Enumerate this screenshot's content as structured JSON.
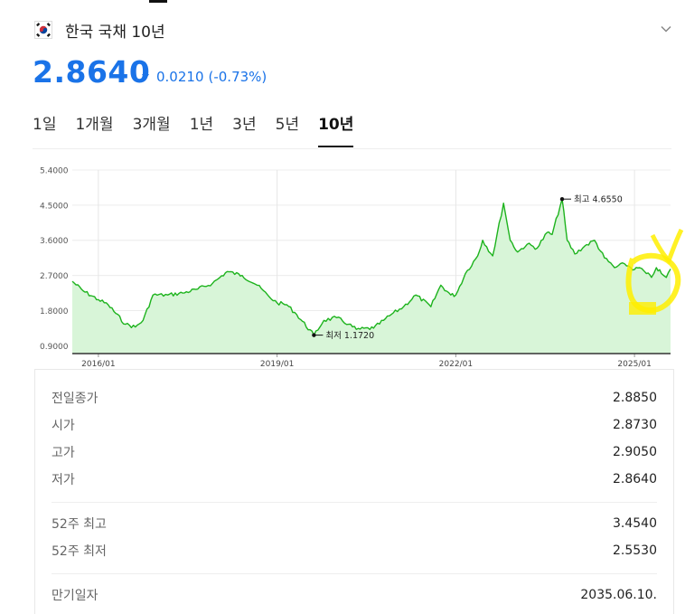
{
  "header": {
    "flag_icon": "korea-flag-icon",
    "title": "한국 국채 10년",
    "expand_icon": "chevron-down-icon"
  },
  "quote": {
    "price": "2.8640",
    "direction_icon": "down-triangle-icon",
    "change": "0.0210",
    "change_pct": "(-0.73%)",
    "color": "#1a73e8"
  },
  "tabs": [
    {
      "label": "1일",
      "active": false
    },
    {
      "label": "1개월",
      "active": false
    },
    {
      "label": "3개월",
      "active": false
    },
    {
      "label": "1년",
      "active": false
    },
    {
      "label": "3년",
      "active": false
    },
    {
      "label": "5년",
      "active": false
    },
    {
      "label": "10년",
      "active": true
    }
  ],
  "chart_data": {
    "type": "area",
    "line_color": "#1db31d",
    "fill_color": "#d8f5d8",
    "x_domain": [
      "2015-07-25",
      "2025-08-10"
    ],
    "ylim": [
      0.7,
      5.4
    ],
    "y_ticks": [
      "5.4000",
      "4.5000",
      "3.6000",
      "2.7000",
      "1.8000",
      "0.9000"
    ],
    "x_ticks": [
      {
        "date": "2016-01-01",
        "label": "2016/01"
      },
      {
        "date": "2019-01-01",
        "label": "2019/01"
      },
      {
        "date": "2022-01-01",
        "label": "2022/01"
      },
      {
        "date": "2025-01-01",
        "label": "2025/01"
      }
    ],
    "grid": true,
    "annotations": [
      {
        "date": "2023-10-15",
        "value": 4.655,
        "text": "최고 4.6550"
      },
      {
        "date": "2019-08-15",
        "value": 1.172,
        "text": "최저 1.1720"
      }
    ],
    "series": [
      {
        "dates": [
          "2015-07-25",
          "2015-10-01",
          "2016-01-01",
          "2016-03-01",
          "2016-06-15",
          "2016-08-15",
          "2016-10-01",
          "2016-12-01",
          "2017-03-01",
          "2017-06-01",
          "2017-09-01",
          "2017-12-01",
          "2018-01-15",
          "2018-03-01",
          "2018-06-01",
          "2018-09-01",
          "2018-11-15",
          "2019-01-01",
          "2019-03-01",
          "2019-05-01",
          "2019-08-15",
          "2019-10-15",
          "2020-01-01",
          "2020-03-15",
          "2020-05-01",
          "2020-08-15",
          "2020-10-15",
          "2020-12-01",
          "2021-02-15",
          "2021-05-01",
          "2021-08-01",
          "2021-10-01",
          "2021-12-01",
          "2022-01-01",
          "2022-03-01",
          "2022-05-15",
          "2022-06-15",
          "2022-08-15",
          "2022-10-21",
          "2022-12-01",
          "2023-01-15",
          "2023-03-15",
          "2023-05-15",
          "2023-07-15",
          "2023-08-15",
          "2023-10-15",
          "2023-11-15",
          "2024-01-01",
          "2024-03-01",
          "2024-05-01",
          "2024-07-01",
          "2024-09-01",
          "2024-11-01",
          "2025-01-01",
          "2025-02-01",
          "2025-03-15",
          "2025-04-15",
          "2025-05-15",
          "2025-06-15",
          "2025-07-15",
          "2025-08-10"
        ],
        "values": [
          2.55,
          2.3,
          2.08,
          1.95,
          1.45,
          1.38,
          1.55,
          2.2,
          2.2,
          2.25,
          2.35,
          2.5,
          2.65,
          2.8,
          2.7,
          2.45,
          2.15,
          2.0,
          1.95,
          1.7,
          1.17,
          1.55,
          1.62,
          1.45,
          1.32,
          1.35,
          1.55,
          1.7,
          1.9,
          2.2,
          1.9,
          2.45,
          2.2,
          2.2,
          2.75,
          3.2,
          3.6,
          3.2,
          4.55,
          3.6,
          3.3,
          3.5,
          3.4,
          3.8,
          3.75,
          4.655,
          3.6,
          3.25,
          3.45,
          3.6,
          3.15,
          2.9,
          3.0,
          2.85,
          2.9,
          2.75,
          2.65,
          2.9,
          2.75,
          2.65,
          2.864
        ]
      }
    ]
  },
  "stats": {
    "rows1": [
      {
        "label": "전일종가",
        "value": "2.8850"
      },
      {
        "label": "시가",
        "value": "2.8730"
      },
      {
        "label": "고가",
        "value": "2.9050"
      },
      {
        "label": "저가",
        "value": "2.8640"
      }
    ],
    "rows2": [
      {
        "label": "52주 최고",
        "value": "3.4540"
      },
      {
        "label": "52주 최저",
        "value": "2.5530"
      }
    ],
    "rows3": [
      {
        "label": "만기일자",
        "value": "2035.06.10."
      }
    ]
  },
  "overlay": {
    "color": "#ffee00"
  }
}
